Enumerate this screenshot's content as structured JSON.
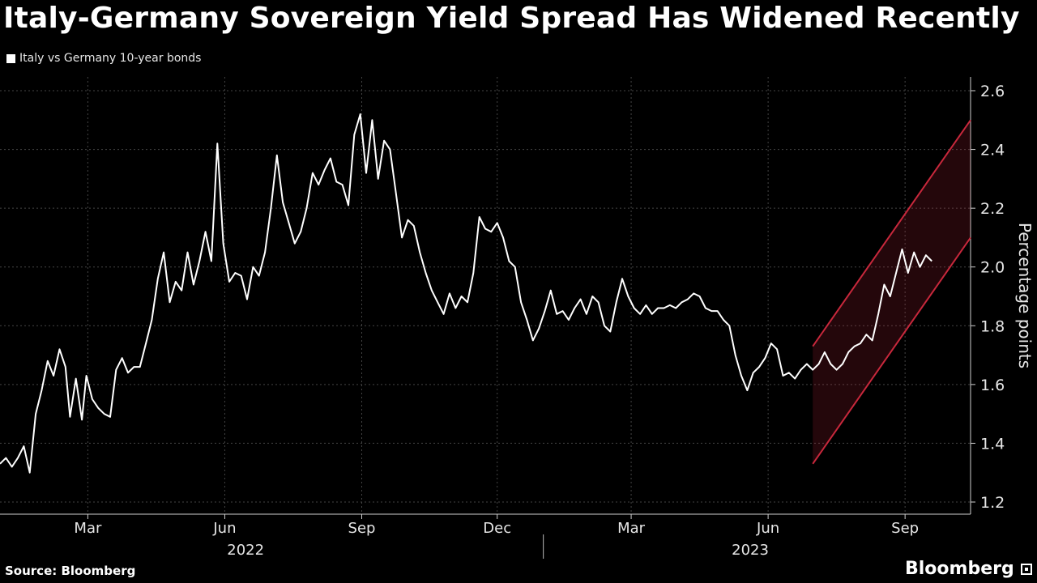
{
  "chart_data": {
    "type": "line",
    "title": "Italy-Germany Sovereign Yield Spread Has Widened Recently",
    "series": [
      {
        "name": "Italy vs Germany 10-year bonds",
        "points": [
          [
            "2022-01-01",
            1.33
          ],
          [
            "2022-01-05",
            1.35
          ],
          [
            "2022-01-09",
            1.32
          ],
          [
            "2022-01-13",
            1.35
          ],
          [
            "2022-01-17",
            1.39
          ],
          [
            "2022-01-21",
            1.3
          ],
          [
            "2022-01-25",
            1.5
          ],
          [
            "2022-01-29",
            1.58
          ],
          [
            "2022-02-02",
            1.68
          ],
          [
            "2022-02-06",
            1.63
          ],
          [
            "2022-02-10",
            1.72
          ],
          [
            "2022-02-14",
            1.66
          ],
          [
            "2022-02-17",
            1.49
          ],
          [
            "2022-02-21",
            1.62
          ],
          [
            "2022-02-25",
            1.48
          ],
          [
            "2022-02-28",
            1.63
          ],
          [
            "2022-03-04",
            1.55
          ],
          [
            "2022-03-08",
            1.52
          ],
          [
            "2022-03-12",
            1.5
          ],
          [
            "2022-03-16",
            1.49
          ],
          [
            "2022-03-20",
            1.65
          ],
          [
            "2022-03-24",
            1.69
          ],
          [
            "2022-03-28",
            1.64
          ],
          [
            "2022-04-01",
            1.66
          ],
          [
            "2022-04-05",
            1.66
          ],
          [
            "2022-04-09",
            1.74
          ],
          [
            "2022-04-13",
            1.82
          ],
          [
            "2022-04-17",
            1.96
          ],
          [
            "2022-04-21",
            2.05
          ],
          [
            "2022-04-25",
            1.88
          ],
          [
            "2022-04-29",
            1.95
          ],
          [
            "2022-05-03",
            1.92
          ],
          [
            "2022-05-07",
            2.05
          ],
          [
            "2022-05-11",
            1.94
          ],
          [
            "2022-05-15",
            2.02
          ],
          [
            "2022-05-19",
            2.12
          ],
          [
            "2022-05-23",
            2.02
          ],
          [
            "2022-05-27",
            2.42
          ],
          [
            "2022-05-31",
            2.08
          ],
          [
            "2022-06-04",
            1.95
          ],
          [
            "2022-06-08",
            1.98
          ],
          [
            "2022-06-12",
            1.97
          ],
          [
            "2022-06-16",
            1.89
          ],
          [
            "2022-06-20",
            2.0
          ],
          [
            "2022-06-24",
            1.97
          ],
          [
            "2022-06-28",
            2.05
          ],
          [
            "2022-07-02",
            2.2
          ],
          [
            "2022-07-06",
            2.38
          ],
          [
            "2022-07-10",
            2.22
          ],
          [
            "2022-07-14",
            2.15
          ],
          [
            "2022-07-18",
            2.08
          ],
          [
            "2022-07-22",
            2.12
          ],
          [
            "2022-07-26",
            2.2
          ],
          [
            "2022-07-30",
            2.32
          ],
          [
            "2022-08-03",
            2.28
          ],
          [
            "2022-08-07",
            2.33
          ],
          [
            "2022-08-11",
            2.37
          ],
          [
            "2022-08-15",
            2.29
          ],
          [
            "2022-08-19",
            2.28
          ],
          [
            "2022-08-23",
            2.21
          ],
          [
            "2022-08-27",
            2.45
          ],
          [
            "2022-08-31",
            2.52
          ],
          [
            "2022-09-04",
            2.32
          ],
          [
            "2022-09-08",
            2.5
          ],
          [
            "2022-09-12",
            2.3
          ],
          [
            "2022-09-16",
            2.43
          ],
          [
            "2022-09-20",
            2.4
          ],
          [
            "2022-09-24",
            2.25
          ],
          [
            "2022-09-28",
            2.1
          ],
          [
            "2022-10-02",
            2.16
          ],
          [
            "2022-10-06",
            2.14
          ],
          [
            "2022-10-10",
            2.05
          ],
          [
            "2022-10-14",
            1.98
          ],
          [
            "2022-10-18",
            1.92
          ],
          [
            "2022-10-22",
            1.88
          ],
          [
            "2022-10-26",
            1.84
          ],
          [
            "2022-10-30",
            1.91
          ],
          [
            "2022-11-03",
            1.86
          ],
          [
            "2022-11-07",
            1.9
          ],
          [
            "2022-11-11",
            1.88
          ],
          [
            "2022-11-15",
            1.98
          ],
          [
            "2022-11-19",
            2.17
          ],
          [
            "2022-11-23",
            2.13
          ],
          [
            "2022-11-27",
            2.12
          ],
          [
            "2022-12-01",
            2.15
          ],
          [
            "2022-12-05",
            2.1
          ],
          [
            "2022-12-09",
            2.02
          ],
          [
            "2022-12-13",
            2.0
          ],
          [
            "2022-12-17",
            1.88
          ],
          [
            "2022-12-21",
            1.82
          ],
          [
            "2022-12-25",
            1.75
          ],
          [
            "2022-12-29",
            1.79
          ],
          [
            "2023-01-02",
            1.85
          ],
          [
            "2023-01-06",
            1.92
          ],
          [
            "2023-01-10",
            1.84
          ],
          [
            "2023-01-14",
            1.85
          ],
          [
            "2023-01-18",
            1.82
          ],
          [
            "2023-01-22",
            1.86
          ],
          [
            "2023-01-26",
            1.89
          ],
          [
            "2023-01-30",
            1.84
          ],
          [
            "2023-02-03",
            1.9
          ],
          [
            "2023-02-07",
            1.88
          ],
          [
            "2023-02-11",
            1.8
          ],
          [
            "2023-02-15",
            1.78
          ],
          [
            "2023-02-19",
            1.88
          ],
          [
            "2023-02-23",
            1.96
          ],
          [
            "2023-02-27",
            1.9
          ],
          [
            "2023-03-03",
            1.86
          ],
          [
            "2023-03-07",
            1.84
          ],
          [
            "2023-03-11",
            1.87
          ],
          [
            "2023-03-15",
            1.84
          ],
          [
            "2023-03-19",
            1.86
          ],
          [
            "2023-03-23",
            1.86
          ],
          [
            "2023-03-27",
            1.87
          ],
          [
            "2023-03-31",
            1.86
          ],
          [
            "2023-04-04",
            1.88
          ],
          [
            "2023-04-08",
            1.89
          ],
          [
            "2023-04-12",
            1.91
          ],
          [
            "2023-04-16",
            1.9
          ],
          [
            "2023-04-20",
            1.86
          ],
          [
            "2023-04-24",
            1.85
          ],
          [
            "2023-04-28",
            1.85
          ],
          [
            "2023-05-02",
            1.82
          ],
          [
            "2023-05-06",
            1.8
          ],
          [
            "2023-05-10",
            1.7
          ],
          [
            "2023-05-14",
            1.63
          ],
          [
            "2023-05-18",
            1.58
          ],
          [
            "2023-05-22",
            1.64
          ],
          [
            "2023-05-26",
            1.66
          ],
          [
            "2023-05-30",
            1.69
          ],
          [
            "2023-06-03",
            1.74
          ],
          [
            "2023-06-07",
            1.72
          ],
          [
            "2023-06-11",
            1.63
          ],
          [
            "2023-06-15",
            1.64
          ],
          [
            "2023-06-19",
            1.62
          ],
          [
            "2023-06-23",
            1.65
          ],
          [
            "2023-06-27",
            1.67
          ],
          [
            "2023-07-01",
            1.65
          ],
          [
            "2023-07-05",
            1.67
          ],
          [
            "2023-07-09",
            1.71
          ],
          [
            "2023-07-13",
            1.67
          ],
          [
            "2023-07-17",
            1.65
          ],
          [
            "2023-07-21",
            1.67
          ],
          [
            "2023-07-25",
            1.71
          ],
          [
            "2023-07-29",
            1.73
          ],
          [
            "2023-08-02",
            1.74
          ],
          [
            "2023-08-06",
            1.77
          ],
          [
            "2023-08-10",
            1.75
          ],
          [
            "2023-08-14",
            1.84
          ],
          [
            "2023-08-18",
            1.94
          ],
          [
            "2023-08-22",
            1.9
          ],
          [
            "2023-08-26",
            1.98
          ],
          [
            "2023-08-30",
            2.06
          ],
          [
            "2023-09-03",
            1.98
          ],
          [
            "2023-09-07",
            2.05
          ],
          [
            "2023-09-11",
            2.0
          ],
          [
            "2023-09-15",
            2.04
          ],
          [
            "2023-09-19",
            2.02
          ]
        ]
      }
    ],
    "legend": "Italy vs Germany 10-year bonds",
    "legend_position": "top-left",
    "ylabel": "Percentage points",
    "xlabel": "",
    "ylim": [
      1.2,
      2.6
    ],
    "xlim": [
      "2022-01-01",
      "2023-10-15"
    ],
    "yticks": [
      1.2,
      1.4,
      1.6,
      1.8,
      2.0,
      2.2,
      2.4,
      2.6
    ],
    "ytick_labels": [
      "1.2",
      "1.4",
      "1.6",
      "1.8",
      "2.0",
      "2.2",
      "2.4",
      "2.6"
    ],
    "xticks": [
      {
        "date": "2022-03-01",
        "label": "Mar"
      },
      {
        "date": "2022-06-01",
        "label": "Jun"
      },
      {
        "date": "2022-09-01",
        "label": "Sep"
      },
      {
        "date": "2022-12-01",
        "label": "Dec"
      },
      {
        "date": "2023-03-01",
        "label": "Mar"
      },
      {
        "date": "2023-06-01",
        "label": "Jun"
      },
      {
        "date": "2023-09-01",
        "label": "Sep"
      }
    ],
    "years": [
      {
        "label": "2022",
        "center": "2022-06-15"
      },
      {
        "label": "2023",
        "center": "2023-05-20"
      }
    ],
    "year_divider": "2023-01-01",
    "grid": true,
    "annotation": {
      "type": "channel",
      "start_date": "2023-07-01",
      "end_date": "2023-10-15",
      "upper": [
        1.73,
        2.5
      ],
      "lower": [
        1.33,
        2.1
      ],
      "color": "#c8283c"
    }
  },
  "source": "Source: Bloomberg",
  "brand": "Bloomberg",
  "colors": {
    "background": "#000000",
    "line": "#ffffff",
    "grid": "#444444",
    "channel": "#c8283c"
  }
}
